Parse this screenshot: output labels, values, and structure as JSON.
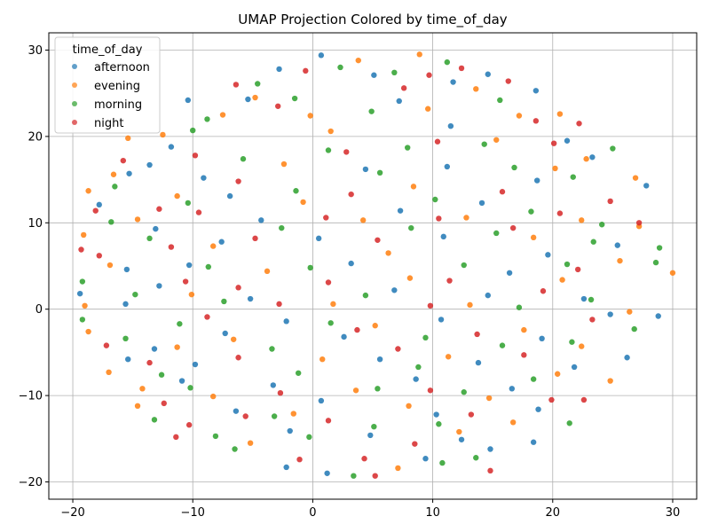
{
  "chart_data": {
    "type": "scatter",
    "title": "UMAP Projection Colored by time_of_day",
    "xlabel": "",
    "ylabel": "",
    "xlim": [
      -22,
      32
    ],
    "ylim": [
      -22,
      32
    ],
    "xticks": [
      -20,
      -10,
      0,
      10,
      20,
      30
    ],
    "yticks": [
      -20,
      -10,
      0,
      10,
      20,
      30
    ],
    "grid": true,
    "legend": {
      "title": "time_of_day",
      "placement": "top-left"
    },
    "series": [
      {
        "name": "afternoon",
        "color": "#1f77b4",
        "points": [
          [
            0.7,
            29.4
          ],
          [
            -2.8,
            27.8
          ],
          [
            5.1,
            27.1
          ],
          [
            11.7,
            26.3
          ],
          [
            14.6,
            27.2
          ],
          [
            18.6,
            25.3
          ],
          [
            -5.4,
            24.3
          ],
          [
            7.2,
            24.1
          ],
          [
            -10.4,
            24.2
          ],
          [
            11.5,
            21.2
          ],
          [
            21.2,
            19.5
          ],
          [
            23.3,
            17.6
          ],
          [
            -11.8,
            18.8
          ],
          [
            -13.6,
            16.7
          ],
          [
            -15.3,
            15.7
          ],
          [
            -17.8,
            12.1
          ],
          [
            -9.1,
            15.2
          ],
          [
            4.4,
            16.2
          ],
          [
            -6.9,
            13.1
          ],
          [
            11.2,
            16.5
          ],
          [
            18.7,
            14.9
          ],
          [
            -4.3,
            10.3
          ],
          [
            7.3,
            11.4
          ],
          [
            14.1,
            12.3
          ],
          [
            -13.1,
            9.3
          ],
          [
            -7.6,
            7.8
          ],
          [
            0.5,
            8.2
          ],
          [
            10.9,
            8.4
          ],
          [
            19.6,
            6.3
          ],
          [
            27.8,
            14.3
          ],
          [
            -15.5,
            4.6
          ],
          [
            -10.3,
            5.1
          ],
          [
            3.2,
            5.3
          ],
          [
            16.4,
            4.2
          ],
          [
            25.4,
            7.4
          ],
          [
            -12.8,
            2.7
          ],
          [
            -5.2,
            1.2
          ],
          [
            6.8,
            2.2
          ],
          [
            14.6,
            1.6
          ],
          [
            22.6,
            1.2
          ],
          [
            -19.4,
            1.8
          ],
          [
            -15.6,
            0.6
          ],
          [
            -2.2,
            -1.4
          ],
          [
            10.7,
            -1.2
          ],
          [
            24.8,
            -0.6
          ],
          [
            28.8,
            -0.8
          ],
          [
            -13.2,
            -4.6
          ],
          [
            -7.3,
            -2.8
          ],
          [
            2.6,
            -3.2
          ],
          [
            19.1,
            -3.4
          ],
          [
            26.2,
            -5.6
          ],
          [
            -15.4,
            -5.8
          ],
          [
            -9.8,
            -6.4
          ],
          [
            5.6,
            -5.8
          ],
          [
            13.8,
            -6.2
          ],
          [
            21.8,
            -6.7
          ],
          [
            -10.9,
            -8.3
          ],
          [
            -3.3,
            -8.8
          ],
          [
            8.6,
            -8.1
          ],
          [
            16.6,
            -9.2
          ],
          [
            -6.4,
            -11.8
          ],
          [
            0.7,
            -10.6
          ],
          [
            10.3,
            -12.2
          ],
          [
            18.8,
            -11.6
          ],
          [
            -1.9,
            -14.1
          ],
          [
            4.8,
            -14.6
          ],
          [
            12.4,
            -15.1
          ],
          [
            18.4,
            -15.4
          ],
          [
            -2.2,
            -18.3
          ],
          [
            1.2,
            -19.0
          ],
          [
            9.4,
            -17.3
          ],
          [
            14.8,
            -16.2
          ]
        ]
      },
      {
        "name": "evening",
        "color": "#ff7f0e",
        "points": [
          [
            -4.8,
            24.5
          ],
          [
            3.8,
            28.8
          ],
          [
            8.9,
            29.5
          ],
          [
            13.6,
            25.5
          ],
          [
            -7.5,
            22.5
          ],
          [
            -0.2,
            22.4
          ],
          [
            9.6,
            23.2
          ],
          [
            17.2,
            22.4
          ],
          [
            20.6,
            22.6
          ],
          [
            -12.5,
            20.2
          ],
          [
            -15.4,
            19.8
          ],
          [
            1.5,
            20.6
          ],
          [
            15.3,
            19.6
          ],
          [
            22.8,
            17.4
          ],
          [
            -16.6,
            15.6
          ],
          [
            -11.3,
            13.1
          ],
          [
            -2.4,
            16.8
          ],
          [
            8.4,
            14.2
          ],
          [
            20.2,
            16.3
          ],
          [
            26.9,
            15.2
          ],
          [
            -18.7,
            13.7
          ],
          [
            -14.6,
            10.4
          ],
          [
            -0.8,
            12.4
          ],
          [
            4.2,
            10.3
          ],
          [
            12.8,
            10.6
          ],
          [
            22.4,
            10.3
          ],
          [
            27.2,
            9.6
          ],
          [
            -19.1,
            8.6
          ],
          [
            -8.3,
            7.3
          ],
          [
            6.3,
            6.5
          ],
          [
            18.4,
            8.3
          ],
          [
            25.6,
            5.6
          ],
          [
            -16.9,
            5.1
          ],
          [
            -3.8,
            4.4
          ],
          [
            8.1,
            3.6
          ],
          [
            20.8,
            3.4
          ],
          [
            30.0,
            4.2
          ],
          [
            -19.0,
            0.4
          ],
          [
            -10.1,
            1.7
          ],
          [
            1.7,
            0.6
          ],
          [
            13.1,
            0.5
          ],
          [
            26.4,
            -0.3
          ],
          [
            -18.7,
            -2.6
          ],
          [
            -6.6,
            -3.5
          ],
          [
            5.2,
            -1.9
          ],
          [
            17.6,
            -2.4
          ],
          [
            22.4,
            -4.3
          ],
          [
            -17.0,
            -7.3
          ],
          [
            -11.3,
            -4.4
          ],
          [
            0.8,
            -5.8
          ],
          [
            11.3,
            -5.5
          ],
          [
            20.4,
            -7.5
          ],
          [
            24.8,
            -8.3
          ],
          [
            -14.2,
            -9.2
          ],
          [
            -8.3,
            -10.1
          ],
          [
            3.6,
            -9.4
          ],
          [
            14.7,
            -10.3
          ],
          [
            -14.6,
            -11.2
          ],
          [
            -1.6,
            -12.1
          ],
          [
            8.0,
            -11.2
          ],
          [
            -5.2,
            -15.5
          ],
          [
            7.1,
            -18.4
          ],
          [
            12.2,
            -14.2
          ],
          [
            16.7,
            -13.1
          ]
        ]
      },
      {
        "name": "morning",
        "color": "#2ca02c",
        "points": [
          [
            -4.6,
            26.1
          ],
          [
            2.3,
            28.0
          ],
          [
            6.8,
            27.4
          ],
          [
            11.2,
            28.6
          ],
          [
            -1.5,
            24.4
          ],
          [
            4.9,
            22.9
          ],
          [
            15.6,
            24.2
          ],
          [
            -8.8,
            22.0
          ],
          [
            -10.0,
            20.7
          ],
          [
            1.3,
            18.4
          ],
          [
            7.9,
            18.7
          ],
          [
            14.3,
            19.1
          ],
          [
            25.0,
            18.6
          ],
          [
            -16.5,
            14.2
          ],
          [
            -5.8,
            17.4
          ],
          [
            5.6,
            15.8
          ],
          [
            16.8,
            16.4
          ],
          [
            21.7,
            15.3
          ],
          [
            -16.8,
            10.1
          ],
          [
            -10.4,
            12.3
          ],
          [
            -1.4,
            13.7
          ],
          [
            10.2,
            12.7
          ],
          [
            18.2,
            11.3
          ],
          [
            24.1,
            9.8
          ],
          [
            -13.6,
            8.2
          ],
          [
            -2.6,
            9.4
          ],
          [
            8.2,
            9.4
          ],
          [
            15.3,
            8.8
          ],
          [
            23.4,
            7.8
          ],
          [
            28.9,
            7.1
          ],
          [
            -19.2,
            3.2
          ],
          [
            -8.7,
            4.9
          ],
          [
            -0.2,
            4.8
          ],
          [
            12.6,
            5.1
          ],
          [
            21.2,
            5.2
          ],
          [
            28.6,
            5.4
          ],
          [
            -14.8,
            1.7
          ],
          [
            -7.4,
            0.9
          ],
          [
            4.4,
            1.6
          ],
          [
            17.2,
            0.2
          ],
          [
            23.2,
            1.1
          ],
          [
            -19.2,
            -1.2
          ],
          [
            -11.1,
            -1.7
          ],
          [
            1.5,
            -1.6
          ],
          [
            9.4,
            -3.3
          ],
          [
            26.8,
            -2.3
          ],
          [
            -15.6,
            -3.4
          ],
          [
            -3.4,
            -4.6
          ],
          [
            15.8,
            -4.2
          ],
          [
            21.6,
            -3.8
          ],
          [
            -12.6,
            -7.6
          ],
          [
            -1.2,
            -7.4
          ],
          [
            8.8,
            -6.7
          ],
          [
            18.4,
            -8.1
          ],
          [
            -10.2,
            -9.1
          ],
          [
            5.4,
            -9.2
          ],
          [
            12.6,
            -9.6
          ],
          [
            -13.2,
            -12.8
          ],
          [
            -3.2,
            -12.4
          ],
          [
            5.1,
            -13.6
          ],
          [
            10.5,
            -13.3
          ],
          [
            -6.5,
            -16.2
          ],
          [
            -0.3,
            -14.8
          ],
          [
            3.4,
            -19.3
          ],
          [
            10.8,
            -17.8
          ],
          [
            13.6,
            -17.2
          ],
          [
            21.4,
            -13.2
          ],
          [
            -8.1,
            -14.7
          ]
        ]
      },
      {
        "name": "night",
        "color": "#d62728",
        "points": [
          [
            -0.6,
            27.6
          ],
          [
            9.7,
            27.1
          ],
          [
            12.4,
            27.9
          ],
          [
            16.3,
            26.4
          ],
          [
            -6.4,
            26.0
          ],
          [
            -2.9,
            23.5
          ],
          [
            7.6,
            25.6
          ],
          [
            18.6,
            21.8
          ],
          [
            22.2,
            21.5
          ],
          [
            -15.8,
            17.2
          ],
          [
            -9.8,
            17.8
          ],
          [
            2.8,
            18.2
          ],
          [
            10.4,
            19.4
          ],
          [
            20.1,
            19.2
          ],
          [
            -18.1,
            11.4
          ],
          [
            -12.8,
            11.6
          ],
          [
            -6.2,
            14.8
          ],
          [
            3.2,
            13.3
          ],
          [
            15.8,
            13.6
          ],
          [
            24.8,
            12.5
          ],
          [
            -9.5,
            11.2
          ],
          [
            1.1,
            10.6
          ],
          [
            10.5,
            10.5
          ],
          [
            20.6,
            11.1
          ],
          [
            -19.3,
            6.9
          ],
          [
            -11.8,
            7.2
          ],
          [
            -4.8,
            8.2
          ],
          [
            5.4,
            8.0
          ],
          [
            16.7,
            9.4
          ],
          [
            27.2,
            10.0
          ],
          [
            -17.8,
            6.2
          ],
          [
            -10.6,
            3.2
          ],
          [
            1.3,
            3.1
          ],
          [
            11.4,
            3.3
          ],
          [
            22.1,
            4.6
          ],
          [
            -6.2,
            2.5
          ],
          [
            -2.8,
            0.6
          ],
          [
            9.8,
            0.4
          ],
          [
            19.2,
            2.1
          ],
          [
            -17.2,
            -4.2
          ],
          [
            -8.8,
            -0.9
          ],
          [
            3.7,
            -2.4
          ],
          [
            13.7,
            -2.9
          ],
          [
            23.3,
            -1.2
          ],
          [
            -13.6,
            -6.2
          ],
          [
            -6.2,
            -5.6
          ],
          [
            7.1,
            -4.6
          ],
          [
            17.6,
            -5.3
          ],
          [
            -12.4,
            -10.9
          ],
          [
            -2.7,
            -9.7
          ],
          [
            9.8,
            -9.4
          ],
          [
            19.9,
            -10.5
          ],
          [
            22.6,
            -10.5
          ],
          [
            -10.3,
            -13.4
          ],
          [
            1.3,
            -12.9
          ],
          [
            13.2,
            -12.2
          ],
          [
            -11.4,
            -14.8
          ],
          [
            -5.6,
            -12.4
          ],
          [
            4.3,
            -17.3
          ],
          [
            8.5,
            -15.6
          ],
          [
            14.8,
            -18.7
          ],
          [
            5.2,
            -19.3
          ],
          [
            -1.1,
            -17.4
          ]
        ]
      }
    ]
  }
}
